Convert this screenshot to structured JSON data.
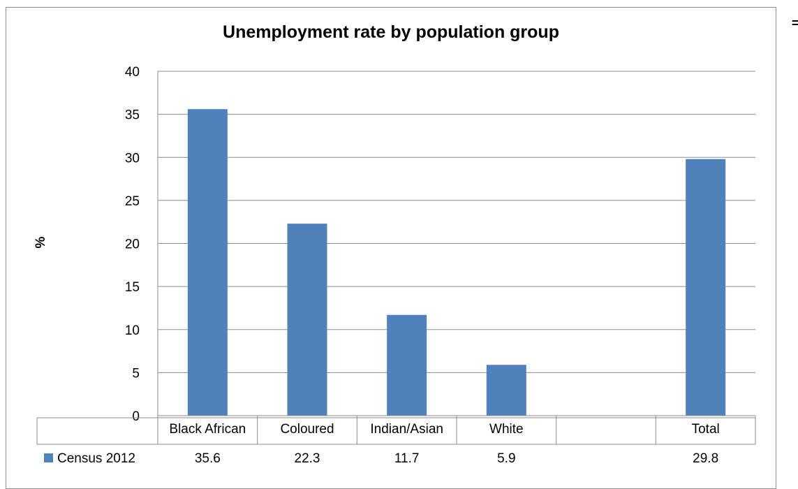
{
  "chart_data": {
    "type": "bar",
    "title": "Unemployment rate by population group",
    "ylabel": "%",
    "xlabel": "",
    "categories": [
      "Black African",
      "Coloured",
      "Indian/Asian",
      "White",
      "",
      "Total"
    ],
    "series": [
      {
        "name": "Census 2012",
        "values": [
          35.6,
          22.3,
          11.7,
          5.9,
          null,
          29.8
        ],
        "color": "#4f81bd"
      }
    ],
    "table_values": [
      "35.6",
      "22.3",
      "11.7",
      "5.9",
      "",
      "29.8"
    ],
    "ylim": [
      0,
      40
    ],
    "yticks": [
      0,
      5,
      10,
      15,
      20,
      25,
      30,
      35,
      40
    ],
    "grid": true,
    "legend": "data-table-left"
  },
  "corner_mark": "="
}
